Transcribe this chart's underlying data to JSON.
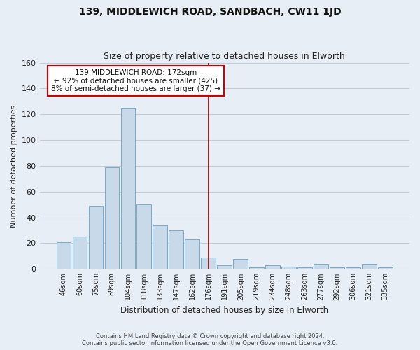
{
  "title": "139, MIDDLEWICH ROAD, SANDBACH, CW11 1JD",
  "subtitle": "Size of property relative to detached houses in Elworth",
  "xlabel": "Distribution of detached houses by size in Elworth",
  "ylabel": "Number of detached properties",
  "footer_line1": "Contains HM Land Registry data © Crown copyright and database right 2024.",
  "footer_line2": "Contains public sector information licensed under the Open Government Licence v3.0.",
  "bar_labels": [
    "46sqm",
    "60sqm",
    "75sqm",
    "89sqm",
    "104sqm",
    "118sqm",
    "133sqm",
    "147sqm",
    "162sqm",
    "176sqm",
    "191sqm",
    "205sqm",
    "219sqm",
    "234sqm",
    "248sqm",
    "263sqm",
    "277sqm",
    "292sqm",
    "306sqm",
    "321sqm",
    "335sqm"
  ],
  "bar_values": [
    21,
    25,
    49,
    79,
    125,
    50,
    34,
    30,
    23,
    9,
    3,
    8,
    1,
    3,
    2,
    1,
    4,
    1,
    1,
    4,
    1
  ],
  "bar_color": "#c8daea",
  "bar_edge_color": "#7aaac8",
  "ylim": [
    0,
    160
  ],
  "yticks": [
    0,
    20,
    40,
    60,
    80,
    100,
    120,
    140,
    160
  ],
  "vline_x_index": 9,
  "vline_color": "#8b0000",
  "annotation_title": "139 MIDDLEWICH ROAD: 172sqm",
  "annotation_line1": "← 92% of detached houses are smaller (425)",
  "annotation_line2": "8% of semi-detached houses are larger (37) →",
  "annotation_box_edge": "#cc0000",
  "background_color": "#e8eef5",
  "plot_bg_color": "#e8eef5",
  "grid_color": "#c0ccd8",
  "title_fontsize": 10,
  "subtitle_fontsize": 9
}
